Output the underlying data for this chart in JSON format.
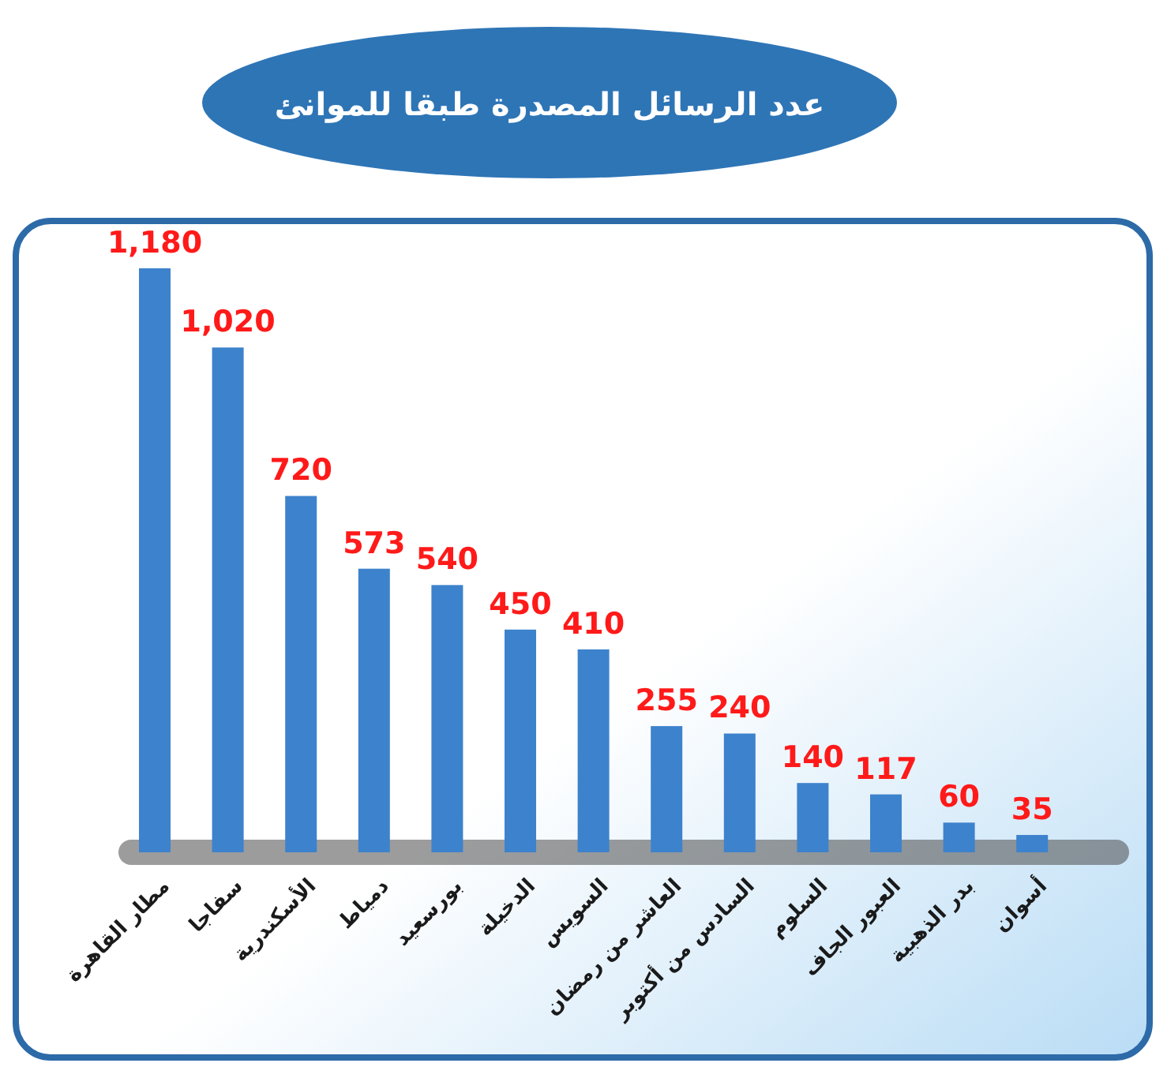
{
  "chart_data": {
    "type": "bar",
    "title": "عدد الرسائل المصدرة طبقا للموانئ",
    "categories": [
      "مطار القاهرة",
      "سفاجا",
      "الأسكندرية",
      "دمياط",
      "بورسعيد",
      "الدخيلة",
      "السويس",
      "العاشر من رمضان",
      "السادس من أكتوبر",
      "السلوم",
      "العبور الجاف",
      "بدر الذهبية",
      "أسوان"
    ],
    "values": [
      1180,
      1020,
      720,
      573,
      540,
      450,
      410,
      255,
      240,
      140,
      117,
      60,
      35
    ],
    "color": "#3d82cc",
    "value_labels": [
      "1,180",
      "1,020",
      "720",
      "573",
      "540",
      "450",
      "410",
      "255",
      "240",
      "140",
      "117",
      "60",
      "35"
    ]
  }
}
